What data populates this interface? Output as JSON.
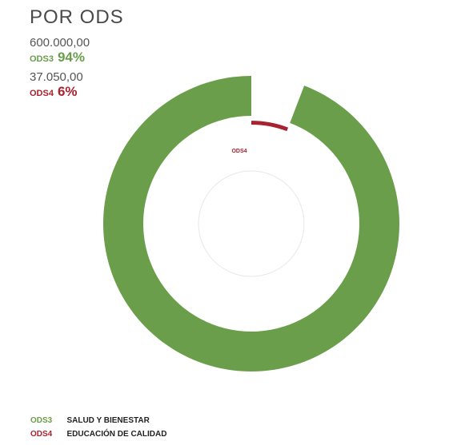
{
  "title": "POR ODS",
  "colors": {
    "ods3": "#6a9e4a",
    "ods4": "#a8222f"
  },
  "stats": [
    {
      "amount": "600.000,00",
      "code": "ODS3",
      "percent": "94%"
    },
    {
      "amount": "37.050,00",
      "code": "ODS4",
      "percent": "6%"
    }
  ],
  "chart_data": {
    "type": "pie",
    "title": "POR ODS",
    "series": [
      {
        "name": "ODS3",
        "value": 600000.0,
        "percent": 94,
        "label": "SALUD Y BIENESTAR",
        "color": "#6a9e4a"
      },
      {
        "name": "ODS4",
        "value": 37050.0,
        "percent": 6,
        "label": "EDUCACIÓN DE CALIDAD",
        "color": "#a8222f"
      }
    ]
  },
  "legend": [
    {
      "code": "ODS3",
      "label": "SALUD Y BIENESTAR"
    },
    {
      "code": "ODS4",
      "label": "EDUCACIÓN DE CALIDAD"
    }
  ]
}
